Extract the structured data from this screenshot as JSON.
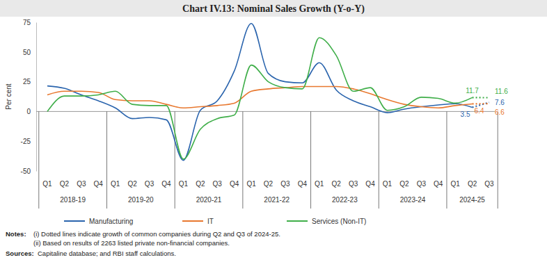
{
  "chart_data": {
    "type": "line",
    "title": "Chart IV.13: Nominal Sales Growth (Y-o-Y)",
    "y_label": "Per cent",
    "x_groups": [
      {
        "label": "2018-19",
        "categories": [
          "Q1",
          "Q2",
          "Q3",
          "Q4"
        ]
      },
      {
        "label": "2019-20",
        "categories": [
          "Q1",
          "Q2",
          "Q3",
          "Q4"
        ]
      },
      {
        "label": "2020-21",
        "categories": [
          "Q1",
          "Q2",
          "Q3",
          "Q4"
        ]
      },
      {
        "label": "2021-22",
        "categories": [
          "Q1",
          "Q2",
          "Q3",
          "Q4"
        ]
      },
      {
        "label": "2022-23",
        "categories": [
          "Q1",
          "Q2",
          "Q3",
          "Q4"
        ]
      },
      {
        "label": "2023-24",
        "categories": [
          "Q1",
          "Q2",
          "Q3",
          "Q4"
        ]
      },
      {
        "label": "2024-25",
        "categories": [
          "Q1",
          "Q2",
          "Q3"
        ]
      }
    ],
    "ylim": [
      -50,
      75
    ],
    "yticks": [
      -50,
      -25,
      0,
      25,
      50,
      75
    ],
    "grid": false,
    "legend": "bottom",
    "series": [
      {
        "name": "Manufacturing",
        "color": "#2a64ad",
        "line_style": "solid",
        "values": [
          21.5,
          19.5,
          14,
          9,
          3,
          -6,
          -5,
          -7,
          -41,
          1,
          9,
          34,
          74,
          32,
          25,
          24,
          41,
          18,
          9,
          4,
          -1,
          2,
          4,
          5.5,
          6.5,
          3.5,
          null
        ]
      },
      {
        "name": "IT",
        "color": "#e8782f",
        "line_style": "solid",
        "values": [
          14,
          17,
          17,
          16,
          10,
          9,
          9,
          6,
          3,
          4,
          5,
          7,
          17,
          19,
          20,
          21,
          21,
          21,
          19,
          15,
          10,
          6,
          4,
          3,
          5,
          6.4,
          null
        ]
      },
      {
        "name": "Services (Non-IT)",
        "color": "#3fae49",
        "line_style": "solid",
        "values": [
          0,
          13,
          13,
          14,
          17,
          6,
          5,
          5,
          -40,
          -15,
          -6,
          -3,
          39,
          25,
          20,
          19,
          62,
          47,
          17,
          20,
          1,
          4,
          12,
          11,
          7,
          11.7,
          null
        ]
      },
      {
        "color": "#2a64ad",
        "line_style": "dotted",
        "data_labels": true,
        "values": [
          null,
          null,
          null,
          null,
          null,
          null,
          null,
          null,
          null,
          null,
          null,
          null,
          null,
          null,
          null,
          null,
          null,
          null,
          null,
          null,
          null,
          null,
          null,
          null,
          null,
          3.5,
          7.6
        ]
      },
      {
        "color": "#e8782f",
        "line_style": "dotted",
        "data_labels": true,
        "values": [
          null,
          null,
          null,
          null,
          null,
          null,
          null,
          null,
          null,
          null,
          null,
          null,
          null,
          null,
          null,
          null,
          null,
          null,
          null,
          null,
          null,
          null,
          null,
          null,
          null,
          6.4,
          6.6
        ]
      },
      {
        "color": "#3fae49",
        "line_style": "dotted",
        "data_labels": true,
        "values": [
          null,
          null,
          null,
          null,
          null,
          null,
          null,
          null,
          null,
          null,
          null,
          null,
          null,
          null,
          null,
          null,
          null,
          null,
          null,
          null,
          null,
          null,
          null,
          null,
          null,
          11.7,
          11.6
        ]
      }
    ],
    "notes_label": "Notes:",
    "notes": [
      "(i)  Dotted lines indicate growth of common companies during Q2 and Q3 of 2024-25.",
      "(ii)  Based on results of 2263 listed private non-financial companies."
    ],
    "sources_label": "Sources:",
    "sources": "Capitaline database; and RBI staff calculations."
  }
}
